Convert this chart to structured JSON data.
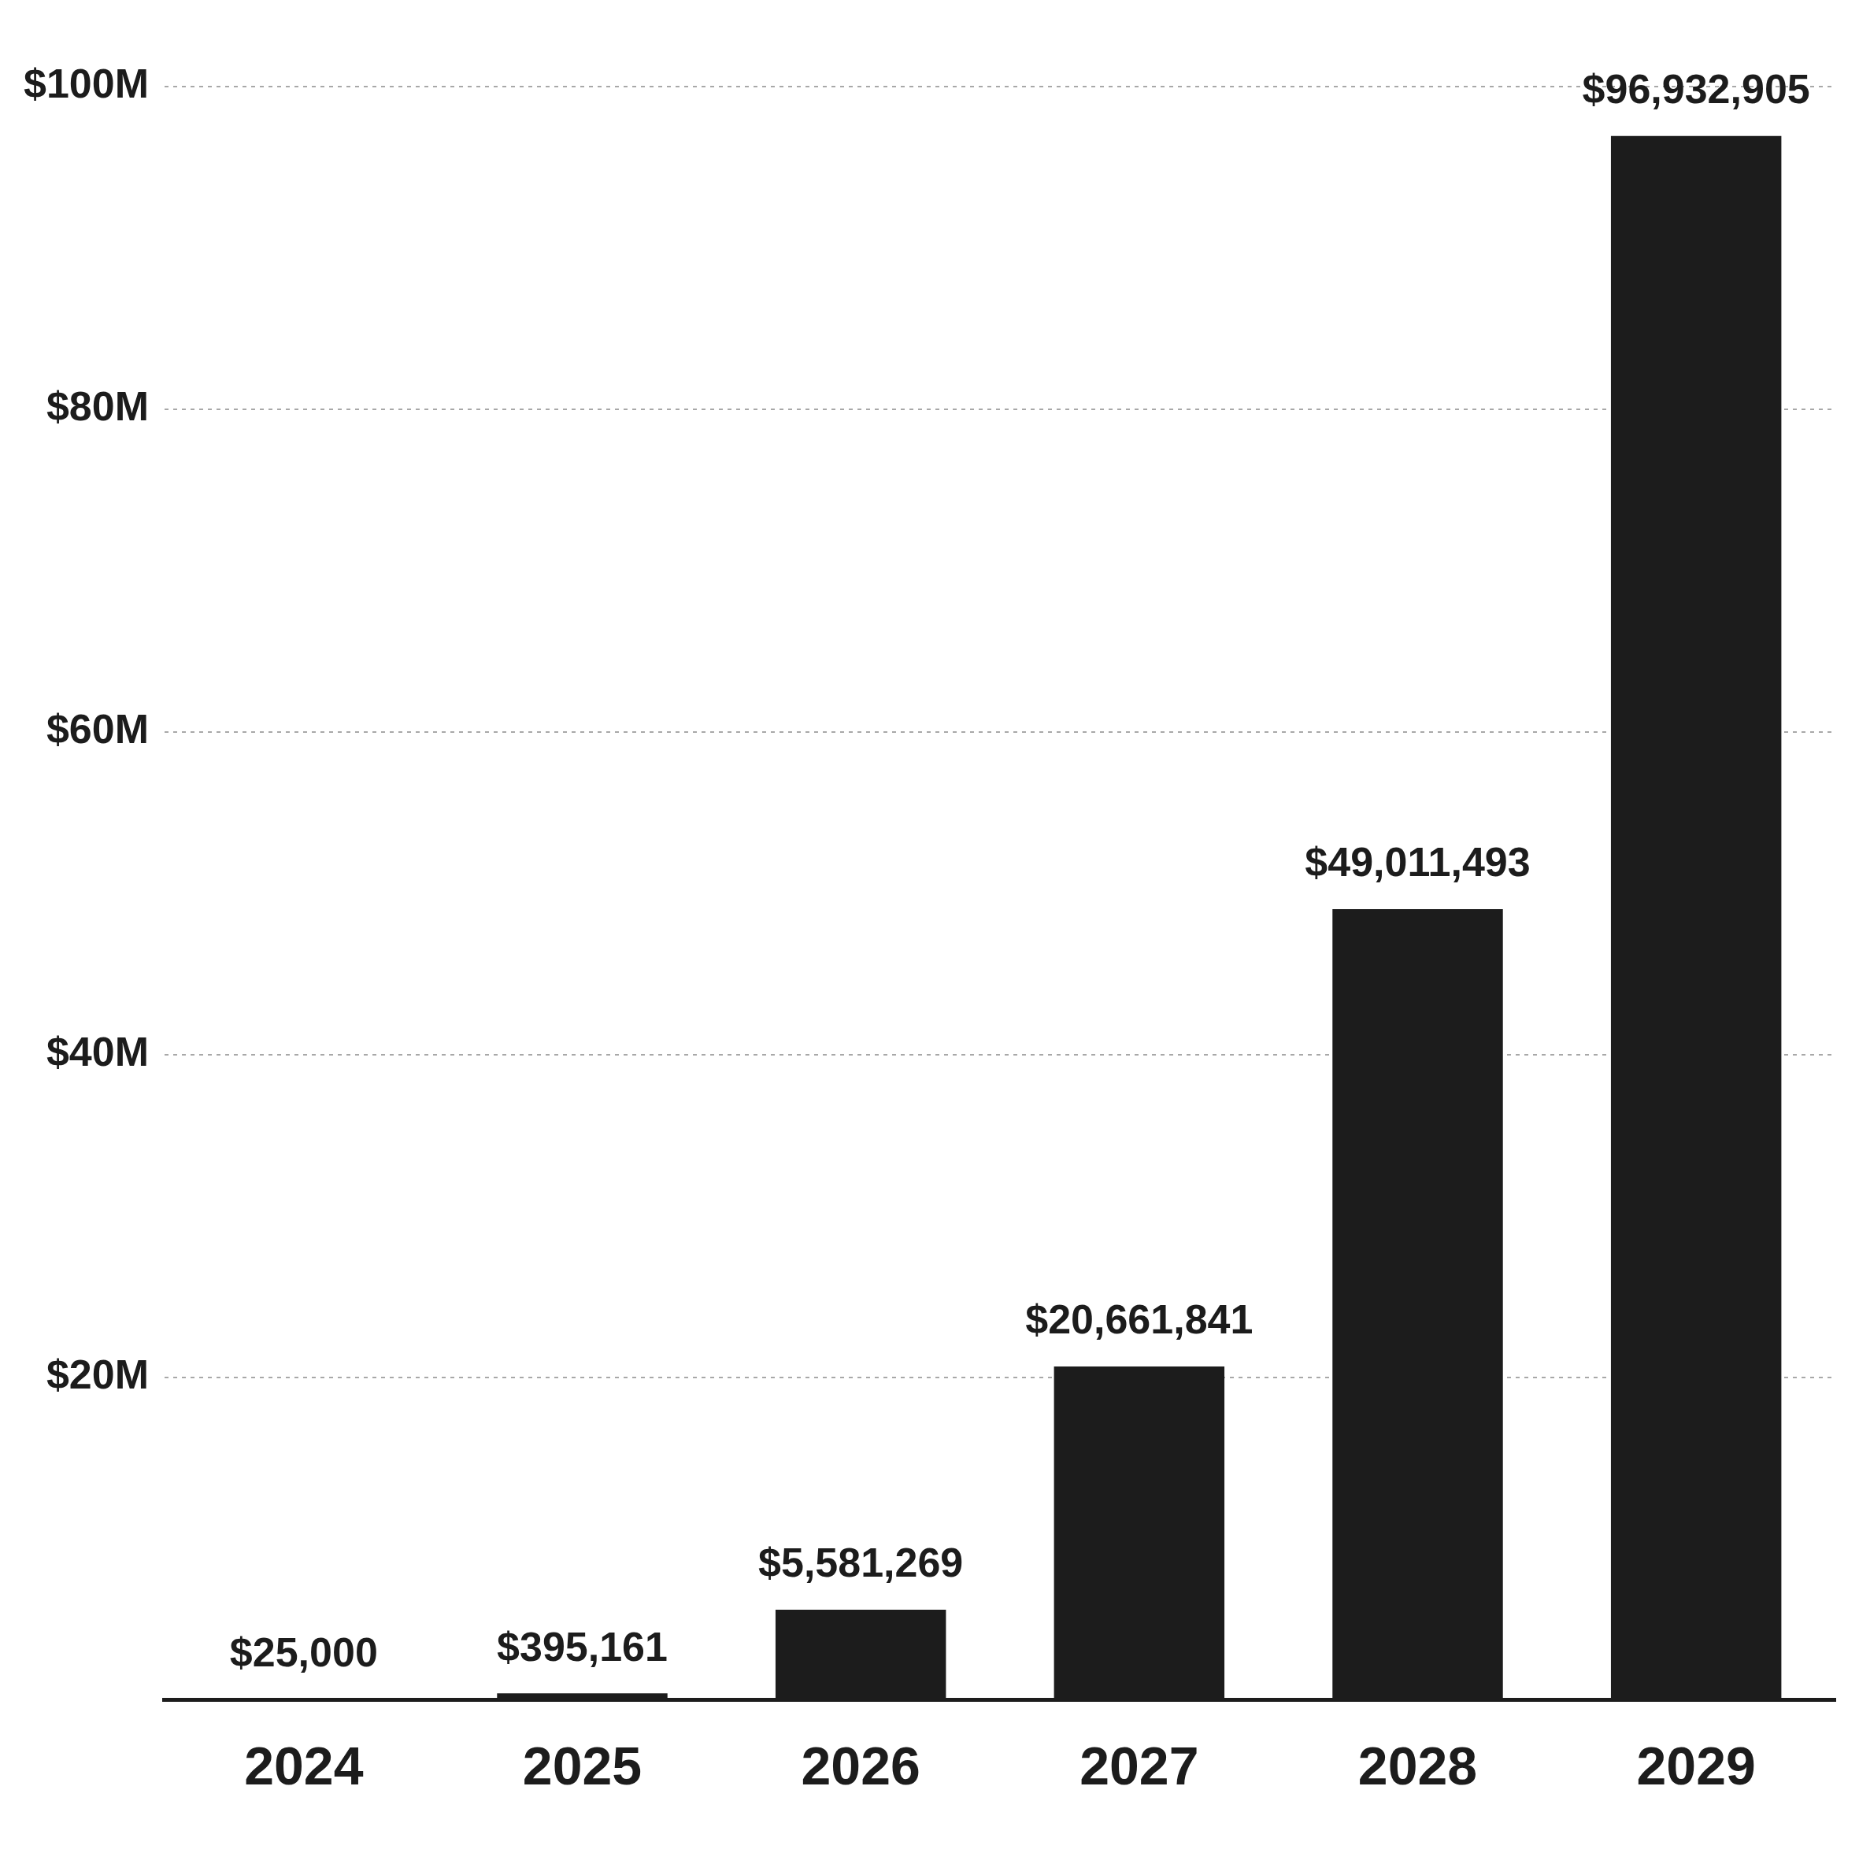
{
  "chart_data": {
    "type": "bar",
    "categories": [
      "2024",
      "2025",
      "2026",
      "2027",
      "2028",
      "2029"
    ],
    "values": [
      25000,
      395161,
      5581269,
      20661841,
      49011493,
      96932905
    ],
    "value_labels": [
      "$25,000",
      "$395,161",
      "$5,581,269",
      "$20,661,841",
      "$49,011,493",
      "$96,932,905"
    ],
    "color": "#1c1c1c",
    "ylim": [
      0,
      100000000
    ],
    "yticks": [
      {
        "value": 20000000,
        "label": "$20M"
      },
      {
        "value": 40000000,
        "label": "$40M"
      },
      {
        "value": 60000000,
        "label": "$60M"
      },
      {
        "value": 80000000,
        "label": "$80M"
      },
      {
        "value": 100000000,
        "label": "$100M"
      }
    ],
    "grid": "y"
  }
}
